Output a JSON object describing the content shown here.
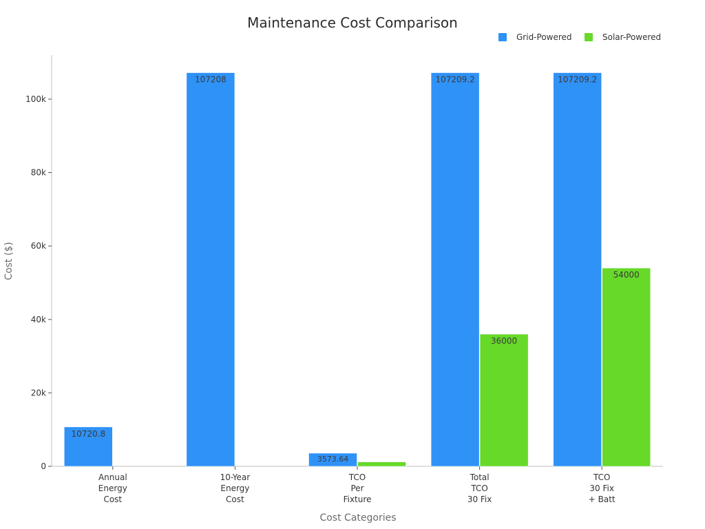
{
  "chart_data": {
    "type": "bar",
    "title": "Maintenance Cost Comparison",
    "xlabel": "Cost Categories",
    "ylabel": "Cost ($)",
    "ylim": [
      0,
      112000
    ],
    "yticks": [
      0,
      20000,
      40000,
      60000,
      80000,
      100000
    ],
    "ytick_labels": [
      "0",
      "20k",
      "40k",
      "60k",
      "80k",
      "100k"
    ],
    "categories": [
      [
        "Annual",
        "Energy",
        "Cost"
      ],
      [
        "10-Year",
        "Energy",
        "Cost"
      ],
      [
        "TCO",
        "Per",
        "Fixture"
      ],
      [
        "Total",
        "TCO",
        "30 Fix"
      ],
      [
        "TCO",
        "30 Fix",
        "+ Batt"
      ]
    ],
    "series": [
      {
        "name": "Grid-Powered",
        "color": "#2f92f7",
        "values": [
          10720.8,
          107208,
          3573.64,
          107209.2,
          107209.2
        ],
        "labels": [
          "10720.8",
          "107208",
          "3573.64",
          "107209.2",
          "107209.2"
        ]
      },
      {
        "name": "Solar-Powered",
        "color": "#66d929",
        "values": [
          0,
          0,
          1200,
          36000,
          54000
        ],
        "labels": [
          "",
          "",
          "",
          "36000",
          "54000"
        ]
      }
    ],
    "legend": "top-right",
    "grid": false
  }
}
